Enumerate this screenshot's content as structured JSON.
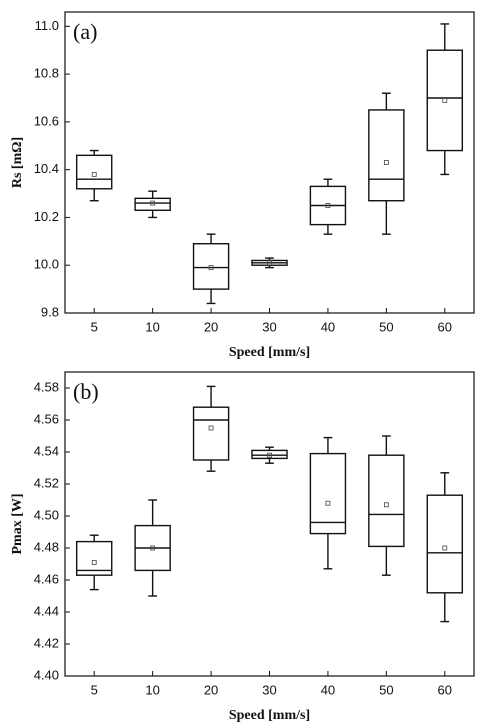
{
  "chart_data": [
    {
      "type": "box",
      "annotation": "(a)",
      "x_label": "Speed [mm/s]",
      "y_label": "Rs [mΩ]",
      "categories": [
        "5",
        "10",
        "20",
        "30",
        "40",
        "50",
        "60"
      ],
      "boxes": [
        {
          "min": 10.27,
          "q1": 10.32,
          "median": 10.36,
          "q3": 10.46,
          "max": 10.48,
          "mean": 10.38
        },
        {
          "min": 10.2,
          "q1": 10.23,
          "median": 10.26,
          "q3": 10.28,
          "max": 10.31,
          "mean": 10.26
        },
        {
          "min": 9.84,
          "q1": 9.9,
          "median": 9.99,
          "q3": 10.09,
          "max": 10.13,
          "mean": 9.99
        },
        {
          "min": 9.99,
          "q1": 10.0,
          "median": 10.01,
          "q3": 10.02,
          "max": 10.03,
          "mean": 10.01
        },
        {
          "min": 10.13,
          "q1": 10.17,
          "median": 10.25,
          "q3": 10.33,
          "max": 10.36,
          "mean": 10.25
        },
        {
          "min": 10.13,
          "q1": 10.27,
          "median": 10.36,
          "q3": 10.65,
          "max": 10.72,
          "mean": 10.43
        },
        {
          "min": 10.38,
          "q1": 10.48,
          "median": 10.7,
          "q3": 10.9,
          "max": 11.01,
          "mean": 10.69
        }
      ],
      "ylim": [
        9.8,
        11.06
      ],
      "yticks": [
        9.8,
        {
          "value": 10.0,
          "label": "10.0"
        },
        10.2,
        10.4,
        10.6,
        10.8,
        {
          "value": 11.0,
          "label": "11.0"
        }
      ]
    },
    {
      "type": "box",
      "annotation": "(b)",
      "x_label": "Speed [mm/s]",
      "y_label": "Pmax [W]",
      "categories": [
        "5",
        "10",
        "20",
        "30",
        "40",
        "50",
        "60"
      ],
      "boxes": [
        {
          "min": 4.454,
          "q1": 4.463,
          "median": 4.466,
          "q3": 4.484,
          "max": 4.488,
          "mean": 4.471
        },
        {
          "min": 4.45,
          "q1": 4.466,
          "median": 4.48,
          "q3": 4.494,
          "max": 4.51,
          "mean": 4.48
        },
        {
          "min": 4.528,
          "q1": 4.535,
          "median": 4.56,
          "q3": 4.568,
          "max": 4.581,
          "mean": 4.555
        },
        {
          "min": 4.533,
          "q1": 4.536,
          "median": 4.538,
          "q3": 4.541,
          "max": 4.543,
          "mean": 4.538
        },
        {
          "min": 4.467,
          "q1": 4.489,
          "median": 4.496,
          "q3": 4.539,
          "max": 4.549,
          "mean": 4.508
        },
        {
          "min": 4.463,
          "q1": 4.481,
          "median": 4.501,
          "q3": 4.538,
          "max": 4.55,
          "mean": 4.507
        },
        {
          "min": 4.434,
          "q1": 4.452,
          "median": 4.477,
          "q3": 4.513,
          "max": 4.527,
          "mean": 4.48
        }
      ],
      "ylim": [
        4.4,
        4.59
      ],
      "yticks": [
        {
          "value": 4.4,
          "label": "4.40"
        },
        4.42,
        4.44,
        4.46,
        4.48,
        {
          "value": 4.5,
          "label": "4.50"
        },
        4.52,
        4.54,
        4.56,
        4.58
      ]
    }
  ]
}
